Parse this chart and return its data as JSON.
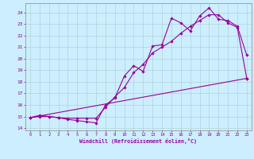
{
  "xlabel": "Windchill (Refroidissement éolien,°C)",
  "bg_color": "#cceeff",
  "line_color": "#990099",
  "xlim": [
    -0.5,
    23.5
  ],
  "ylim": [
    13.8,
    24.8
  ],
  "xticks": [
    0,
    1,
    2,
    3,
    4,
    5,
    6,
    7,
    8,
    9,
    10,
    11,
    12,
    13,
    14,
    15,
    16,
    17,
    18,
    19,
    20,
    21,
    22,
    23
  ],
  "yticks": [
    14,
    15,
    16,
    17,
    18,
    19,
    20,
    21,
    22,
    23,
    24
  ],
  "line1_x": [
    0,
    1,
    2,
    3,
    4,
    5,
    6,
    7,
    8,
    9,
    10,
    11,
    12,
    13,
    14,
    15,
    16,
    17,
    18,
    19,
    20,
    21,
    22,
    23
  ],
  "line1_y": [
    14.9,
    15.1,
    15.0,
    14.9,
    14.75,
    14.65,
    14.55,
    14.45,
    16.0,
    16.6,
    18.5,
    19.4,
    18.9,
    21.1,
    21.2,
    23.5,
    23.1,
    22.4,
    23.7,
    24.4,
    23.4,
    23.3,
    22.8,
    20.3
  ],
  "line2_x": [
    0,
    1,
    2,
    3,
    4,
    5,
    6,
    7,
    8,
    9,
    10,
    11,
    12,
    13,
    14,
    15,
    16,
    17,
    18,
    19,
    20,
    21,
    22,
    23
  ],
  "line2_y": [
    14.9,
    15.0,
    15.0,
    14.9,
    14.85,
    14.85,
    14.85,
    14.85,
    15.8,
    16.7,
    17.5,
    18.8,
    19.5,
    20.5,
    21.0,
    21.5,
    22.2,
    22.8,
    23.3,
    23.8,
    23.8,
    23.1,
    22.7,
    18.3
  ],
  "line3_x": [
    0,
    23
  ],
  "line3_y": [
    14.9,
    18.3
  ]
}
